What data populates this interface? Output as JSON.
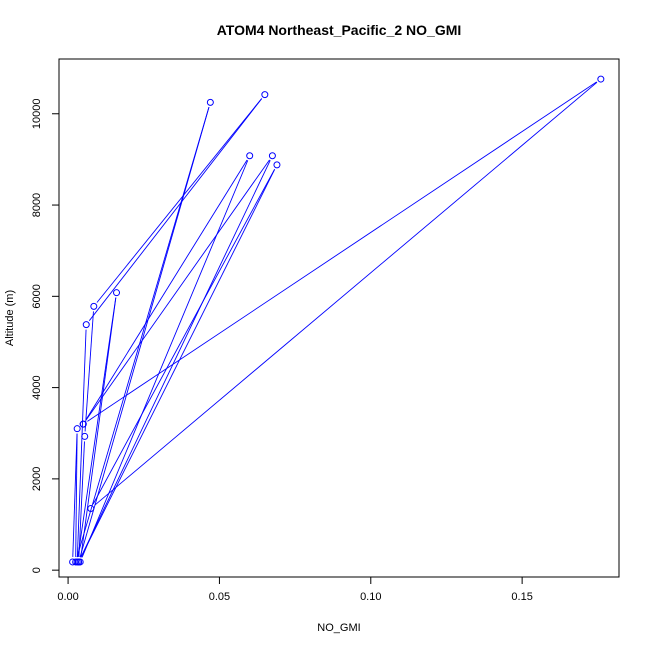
{
  "chart_data": {
    "type": "scatter",
    "title": "ATOM4 Northeast_Pacific_2 NO_GMI",
    "xlabel": "NO_GMI",
    "ylabel": "Altitude (m)",
    "xlim": [
      -0.003,
      0.182
    ],
    "ylim": [
      -150,
      11200
    ],
    "x_ticks": [
      0.0,
      0.05,
      0.1,
      0.15
    ],
    "x_tick_labels": [
      "0.00",
      "0.05",
      "0.10",
      "0.15"
    ],
    "y_ticks": [
      0,
      2000,
      4000,
      6000,
      8000,
      10000
    ],
    "y_tick_labels": [
      "0",
      "2000",
      "4000",
      "6000",
      "8000",
      "10000"
    ],
    "grid": false,
    "series": [
      {
        "color": "#0000ff",
        "marker": "open-circle",
        "connected": true,
        "points": [
          {
            "x": 0.0015,
            "y": 180
          },
          {
            "x": 0.003,
            "y": 3100
          },
          {
            "x": 0.0025,
            "y": 180
          },
          {
            "x": 0.047,
            "y": 10250
          },
          {
            "x": 0.0035,
            "y": 180
          },
          {
            "x": 0.0055,
            "y": 2930
          },
          {
            "x": 0.0085,
            "y": 5780
          },
          {
            "x": 0.065,
            "y": 10420
          },
          {
            "x": 0.006,
            "y": 5380
          },
          {
            "x": 0.003,
            "y": 180
          },
          {
            "x": 0.016,
            "y": 6080
          },
          {
            "x": 0.004,
            "y": 180
          },
          {
            "x": 0.06,
            "y": 9080
          },
          {
            "x": 0.005,
            "y": 3200
          },
          {
            "x": 0.0675,
            "y": 9080
          },
          {
            "x": 0.0035,
            "y": 180
          },
          {
            "x": 0.069,
            "y": 8880
          },
          {
            "x": 0.0075,
            "y": 1350
          },
          {
            "x": 0.176,
            "y": 10760
          },
          {
            "x": 0.005,
            "y": 3200
          }
        ]
      }
    ]
  }
}
